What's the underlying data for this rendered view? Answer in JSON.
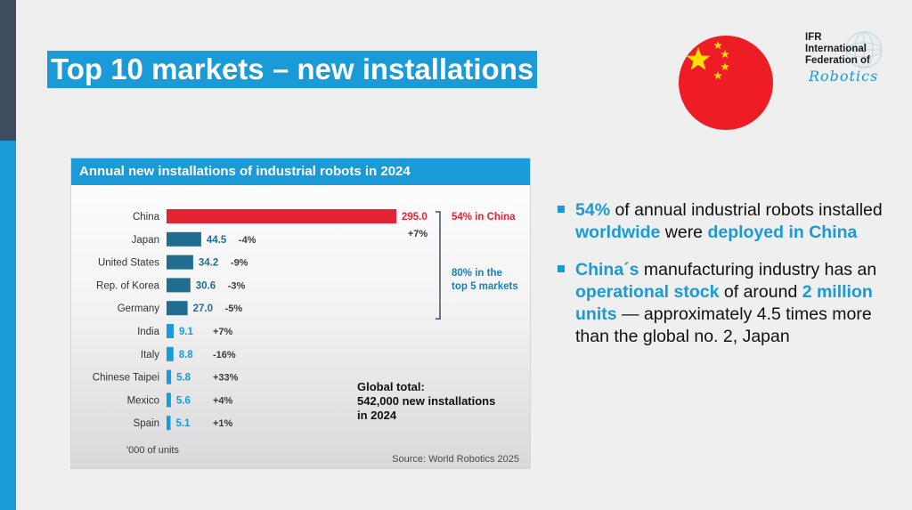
{
  "title": "Top 10 markets – new installations",
  "ifr": {
    "lines": [
      "IFR",
      "International",
      "Federation of"
    ],
    "script": "Robotics"
  },
  "colors": {
    "accent": "#1a9ad6",
    "china": "#e32434",
    "dark_bar": "#1f6e91",
    "light_bar": "#1a9ad6",
    "sidebar_dark": "#3e4c60"
  },
  "chart_data": {
    "type": "bar",
    "orientation": "horizontal",
    "title": "Annual new installations of industrial robots in 2024",
    "categories": [
      "China",
      "Japan",
      "United States",
      "Rep. of Korea",
      "Germany",
      "India",
      "Italy",
      "Chinese Taipei",
      "Mexico",
      "Spain"
    ],
    "values": [
      295.0,
      44.5,
      34.2,
      30.6,
      27.0,
      9.1,
      8.8,
      5.8,
      5.6,
      5.1
    ],
    "value_labels": [
      "295.0",
      "44.5",
      "34.2",
      "30.6",
      "27.0",
      "9.1",
      "8.8",
      "5.8",
      "5.6",
      "5.1"
    ],
    "changes": [
      "+7%",
      "-4%",
      "-9%",
      "-3%",
      "-5%",
      "+7%",
      "-16%",
      "+33%",
      "+4%",
      "+1%"
    ],
    "bar_colors": [
      "#e32434",
      "#1f6e91",
      "#1f6e91",
      "#1f6e91",
      "#1f6e91",
      "#1a9ad6",
      "#1a9ad6",
      "#1a9ad6",
      "#1a9ad6",
      "#1a9ad6"
    ],
    "unit_note": "'000 of units",
    "annotations": {
      "china_share": "54% in China",
      "top5_line1": "80% in the",
      "top5_line2": "top 5 markets",
      "global_total": [
        "Global total:",
        "542,000 new installations",
        "in 2024"
      ]
    },
    "source": "Source: World Robotics 2025"
  },
  "bullets": [
    [
      {
        "t": "54%",
        "hl": true
      },
      {
        "t": " of annual industrial robots installed ",
        "hl": false
      },
      {
        "t": "worldwide",
        "hl": true
      },
      {
        "t": " were ",
        "hl": false
      },
      {
        "t": "deployed in China",
        "hl": true
      }
    ],
    [
      {
        "t": "China´s",
        "hl": true
      },
      {
        "t": " manufacturing industry has an ",
        "hl": false
      },
      {
        "t": "operational stock",
        "hl": true
      },
      {
        "t": " of around ",
        "hl": false
      },
      {
        "t": "2 million units",
        "hl": true
      },
      {
        "t": " — approximately 4.5 times more than the global no. 2, Japan",
        "hl": false
      }
    ]
  ]
}
